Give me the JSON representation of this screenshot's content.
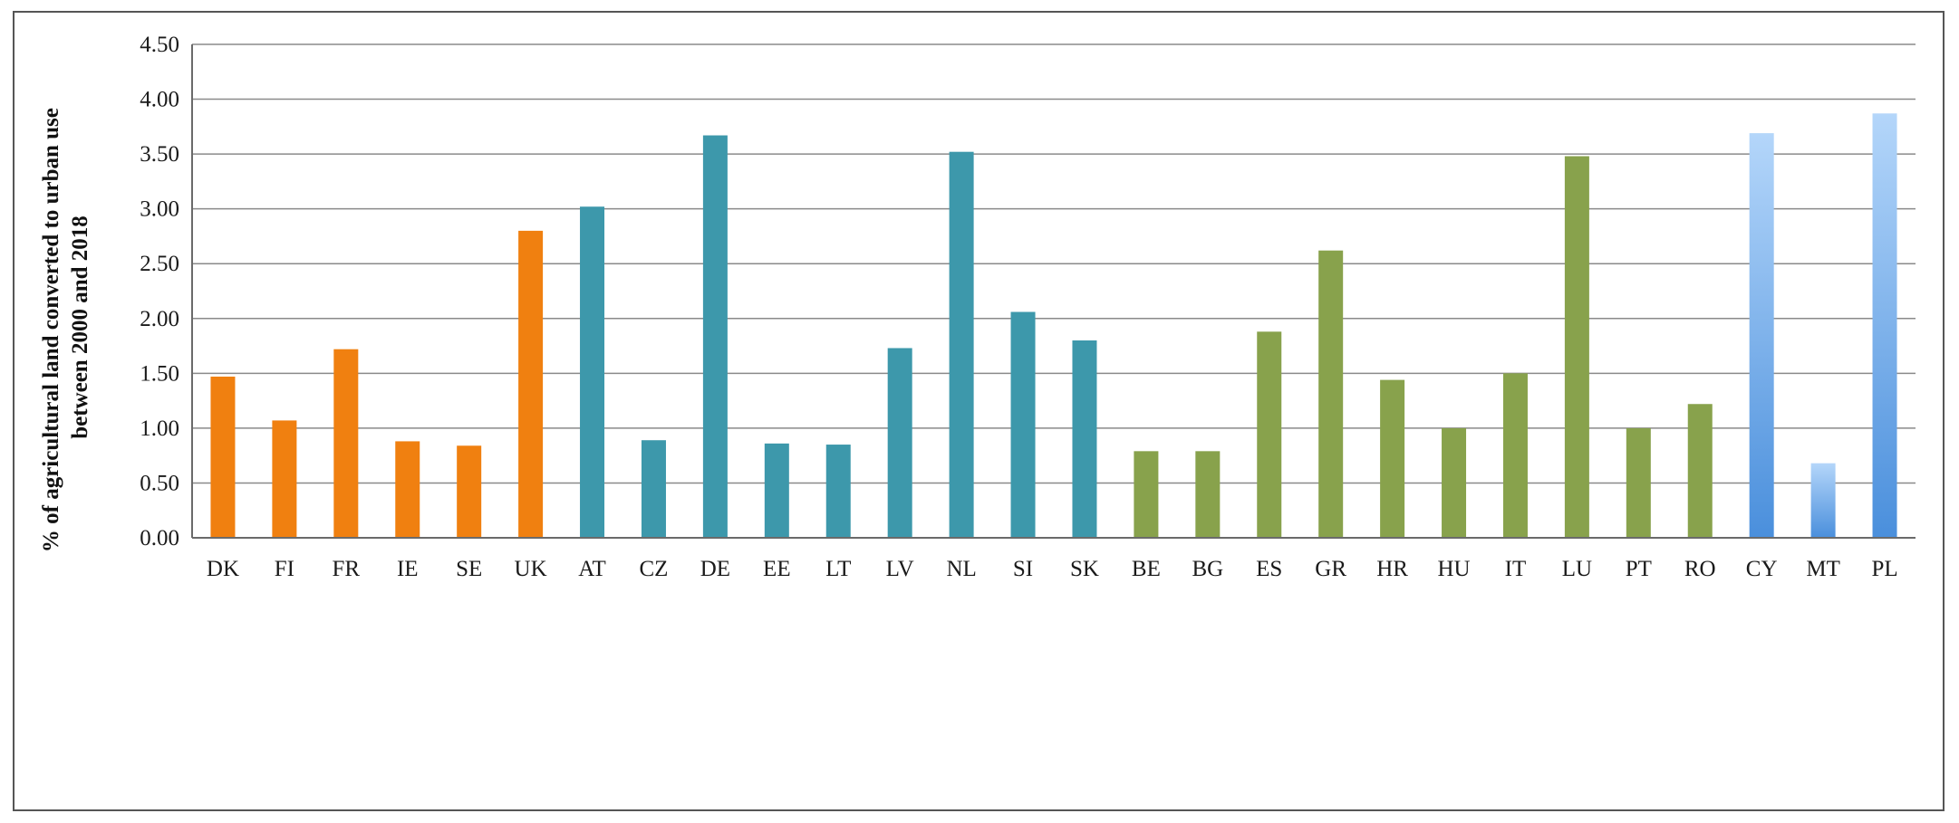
{
  "chart_data": {
    "type": "bar",
    "title": "",
    "xlabel": "",
    "ylabel_lines": [
      "% of agricultural land converted to urban use",
      "between 2000 and 2018"
    ],
    "ylim": [
      0,
      4.5
    ],
    "yticks": [
      "0.00",
      "0.50",
      "1.00",
      "1.50",
      "2.00",
      "2.50",
      "3.00",
      "3.50",
      "4.00",
      "4.50"
    ],
    "grid": true,
    "legend": "none",
    "categories": [
      "DK",
      "FI",
      "FR",
      "IE",
      "SE",
      "UK",
      "AT",
      "CZ",
      "DE",
      "EE",
      "LT",
      "LV",
      "NL",
      "SI",
      "SK",
      "BE",
      "BG",
      "ES",
      "GR",
      "HR",
      "HU",
      "IT",
      "LU",
      "PT",
      "RO",
      "CY",
      "MT",
      "PL"
    ],
    "values": [
      1.47,
      1.07,
      1.72,
      0.88,
      0.84,
      2.8,
      3.02,
      0.89,
      3.67,
      0.86,
      0.85,
      1.73,
      3.52,
      2.06,
      1.8,
      0.79,
      0.79,
      1.88,
      2.62,
      1.44,
      1.0,
      1.5,
      3.48,
      1.0,
      1.22,
      3.69,
      0.68,
      3.87
    ],
    "groups": [
      0,
      0,
      0,
      0,
      0,
      0,
      1,
      1,
      1,
      1,
      1,
      1,
      1,
      1,
      1,
      2,
      2,
      2,
      2,
      2,
      2,
      2,
      2,
      2,
      2,
      3,
      3,
      3
    ],
    "group_colors": [
      "#f08010",
      "#3d98ab",
      "#88a24c",
      "gradient-blue"
    ],
    "gradient_colors": [
      "#b4d6fa",
      "#4a8fdc"
    ]
  }
}
